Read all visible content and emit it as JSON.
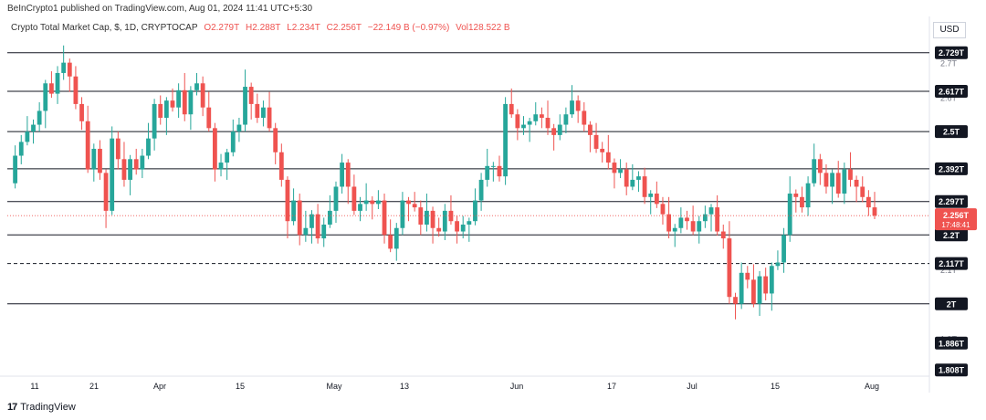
{
  "publisher": "BeInCrypto1 published on TradingView.com, Aug 01, 2024 11:41 UTC+5:30",
  "legend": {
    "symbol": "Crypto Total Market Cap, $, 1D, CRYPTOCAP",
    "open": "O2.279T",
    "high": "H2.288T",
    "low": "L2.234T",
    "close": "C2.256T",
    "change": "−22.149 B (−0.97%)",
    "volume": "Vol128.522 B"
  },
  "currency": "USD",
  "colors": {
    "up": "#26a69a",
    "down": "#ef5350",
    "line": "#131722",
    "current_label": "#ef5350"
  },
  "brand": "TradingView",
  "chart_data": {
    "type": "candlestick",
    "ylim": [
      1.79,
      2.76
    ],
    "y_ticks": [
      "2.7T",
      "2.6T",
      "2.1T",
      "1.9T"
    ],
    "x_ticks": [
      "11",
      "21",
      "Apr",
      "15",
      "May",
      "13",
      "Jun",
      "17",
      "Jul",
      "15",
      "Aug"
    ],
    "horizontal_levels": [
      {
        "value": 2.729,
        "label": "2.729T",
        "style": "solid"
      },
      {
        "value": 2.617,
        "label": "2.617T",
        "style": "solid"
      },
      {
        "value": 2.5,
        "label": "2.5T",
        "style": "solid"
      },
      {
        "value": 2.392,
        "label": "2.392T",
        "style": "solid"
      },
      {
        "value": 2.297,
        "label": "2.297T",
        "style": "solid"
      },
      {
        "value": 2.2,
        "label": "2.2T",
        "style": "solid"
      },
      {
        "value": 2.117,
        "label": "2.117T",
        "style": "dashed"
      },
      {
        "value": 2.0,
        "label": "2T",
        "style": "solid"
      }
    ],
    "extra_price_labels": [
      {
        "value": 1.886,
        "label": "1.886T"
      },
      {
        "value": 1.808,
        "label": "1.808T"
      }
    ],
    "current_price": {
      "value": 2.256,
      "label": "2.256T",
      "countdown": "17:48:41"
    },
    "closes": [
      2.35,
      2.43,
      2.47,
      2.5,
      2.52,
      2.56,
      2.64,
      2.61,
      2.67,
      2.7,
      2.66,
      2.58,
      2.53,
      2.39,
      2.45,
      2.38,
      2.27,
      2.48,
      2.42,
      2.36,
      2.42,
      2.39,
      2.43,
      2.48,
      2.58,
      2.54,
      2.59,
      2.57,
      2.62,
      2.55,
      2.62,
      2.64,
      2.57,
      2.51,
      2.39,
      2.41,
      2.44,
      2.5,
      2.52,
      2.63,
      2.58,
      2.54,
      2.57,
      2.51,
      2.44,
      2.36,
      2.24,
      2.3,
      2.2,
      2.22,
      2.26,
      2.19,
      2.23,
      2.27,
      2.34,
      2.41,
      2.34,
      2.27,
      2.29,
      2.3,
      2.29,
      2.3,
      2.2,
      2.16,
      2.22,
      2.3,
      2.29,
      2.28,
      2.23,
      2.27,
      2.22,
      2.21,
      2.27,
      2.24,
      2.21,
      2.23,
      2.24,
      2.3,
      2.36,
      2.4,
      2.4,
      2.37,
      2.58,
      2.55,
      2.51,
      2.52,
      2.53,
      2.55,
      2.54,
      2.51,
      2.49,
      2.52,
      2.55,
      2.59,
      2.56,
      2.52,
      2.49,
      2.45,
      2.44,
      2.41,
      2.38,
      2.39,
      2.34,
      2.36,
      2.37,
      2.31,
      2.32,
      2.29,
      2.26,
      2.21,
      2.22,
      2.25,
      2.24,
      2.21,
      2.24,
      2.26,
      2.28,
      2.21,
      2.19,
      2.02,
      2.0,
      2.09,
      2.07,
      2.0,
      2.08,
      2.03,
      2.11,
      2.12,
      2.2,
      2.32,
      2.31,
      2.28,
      2.35,
      2.42,
      2.38,
      2.34,
      2.38,
      2.32,
      2.39,
      2.36,
      2.34,
      2.31,
      2.28,
      2.256
    ]
  }
}
